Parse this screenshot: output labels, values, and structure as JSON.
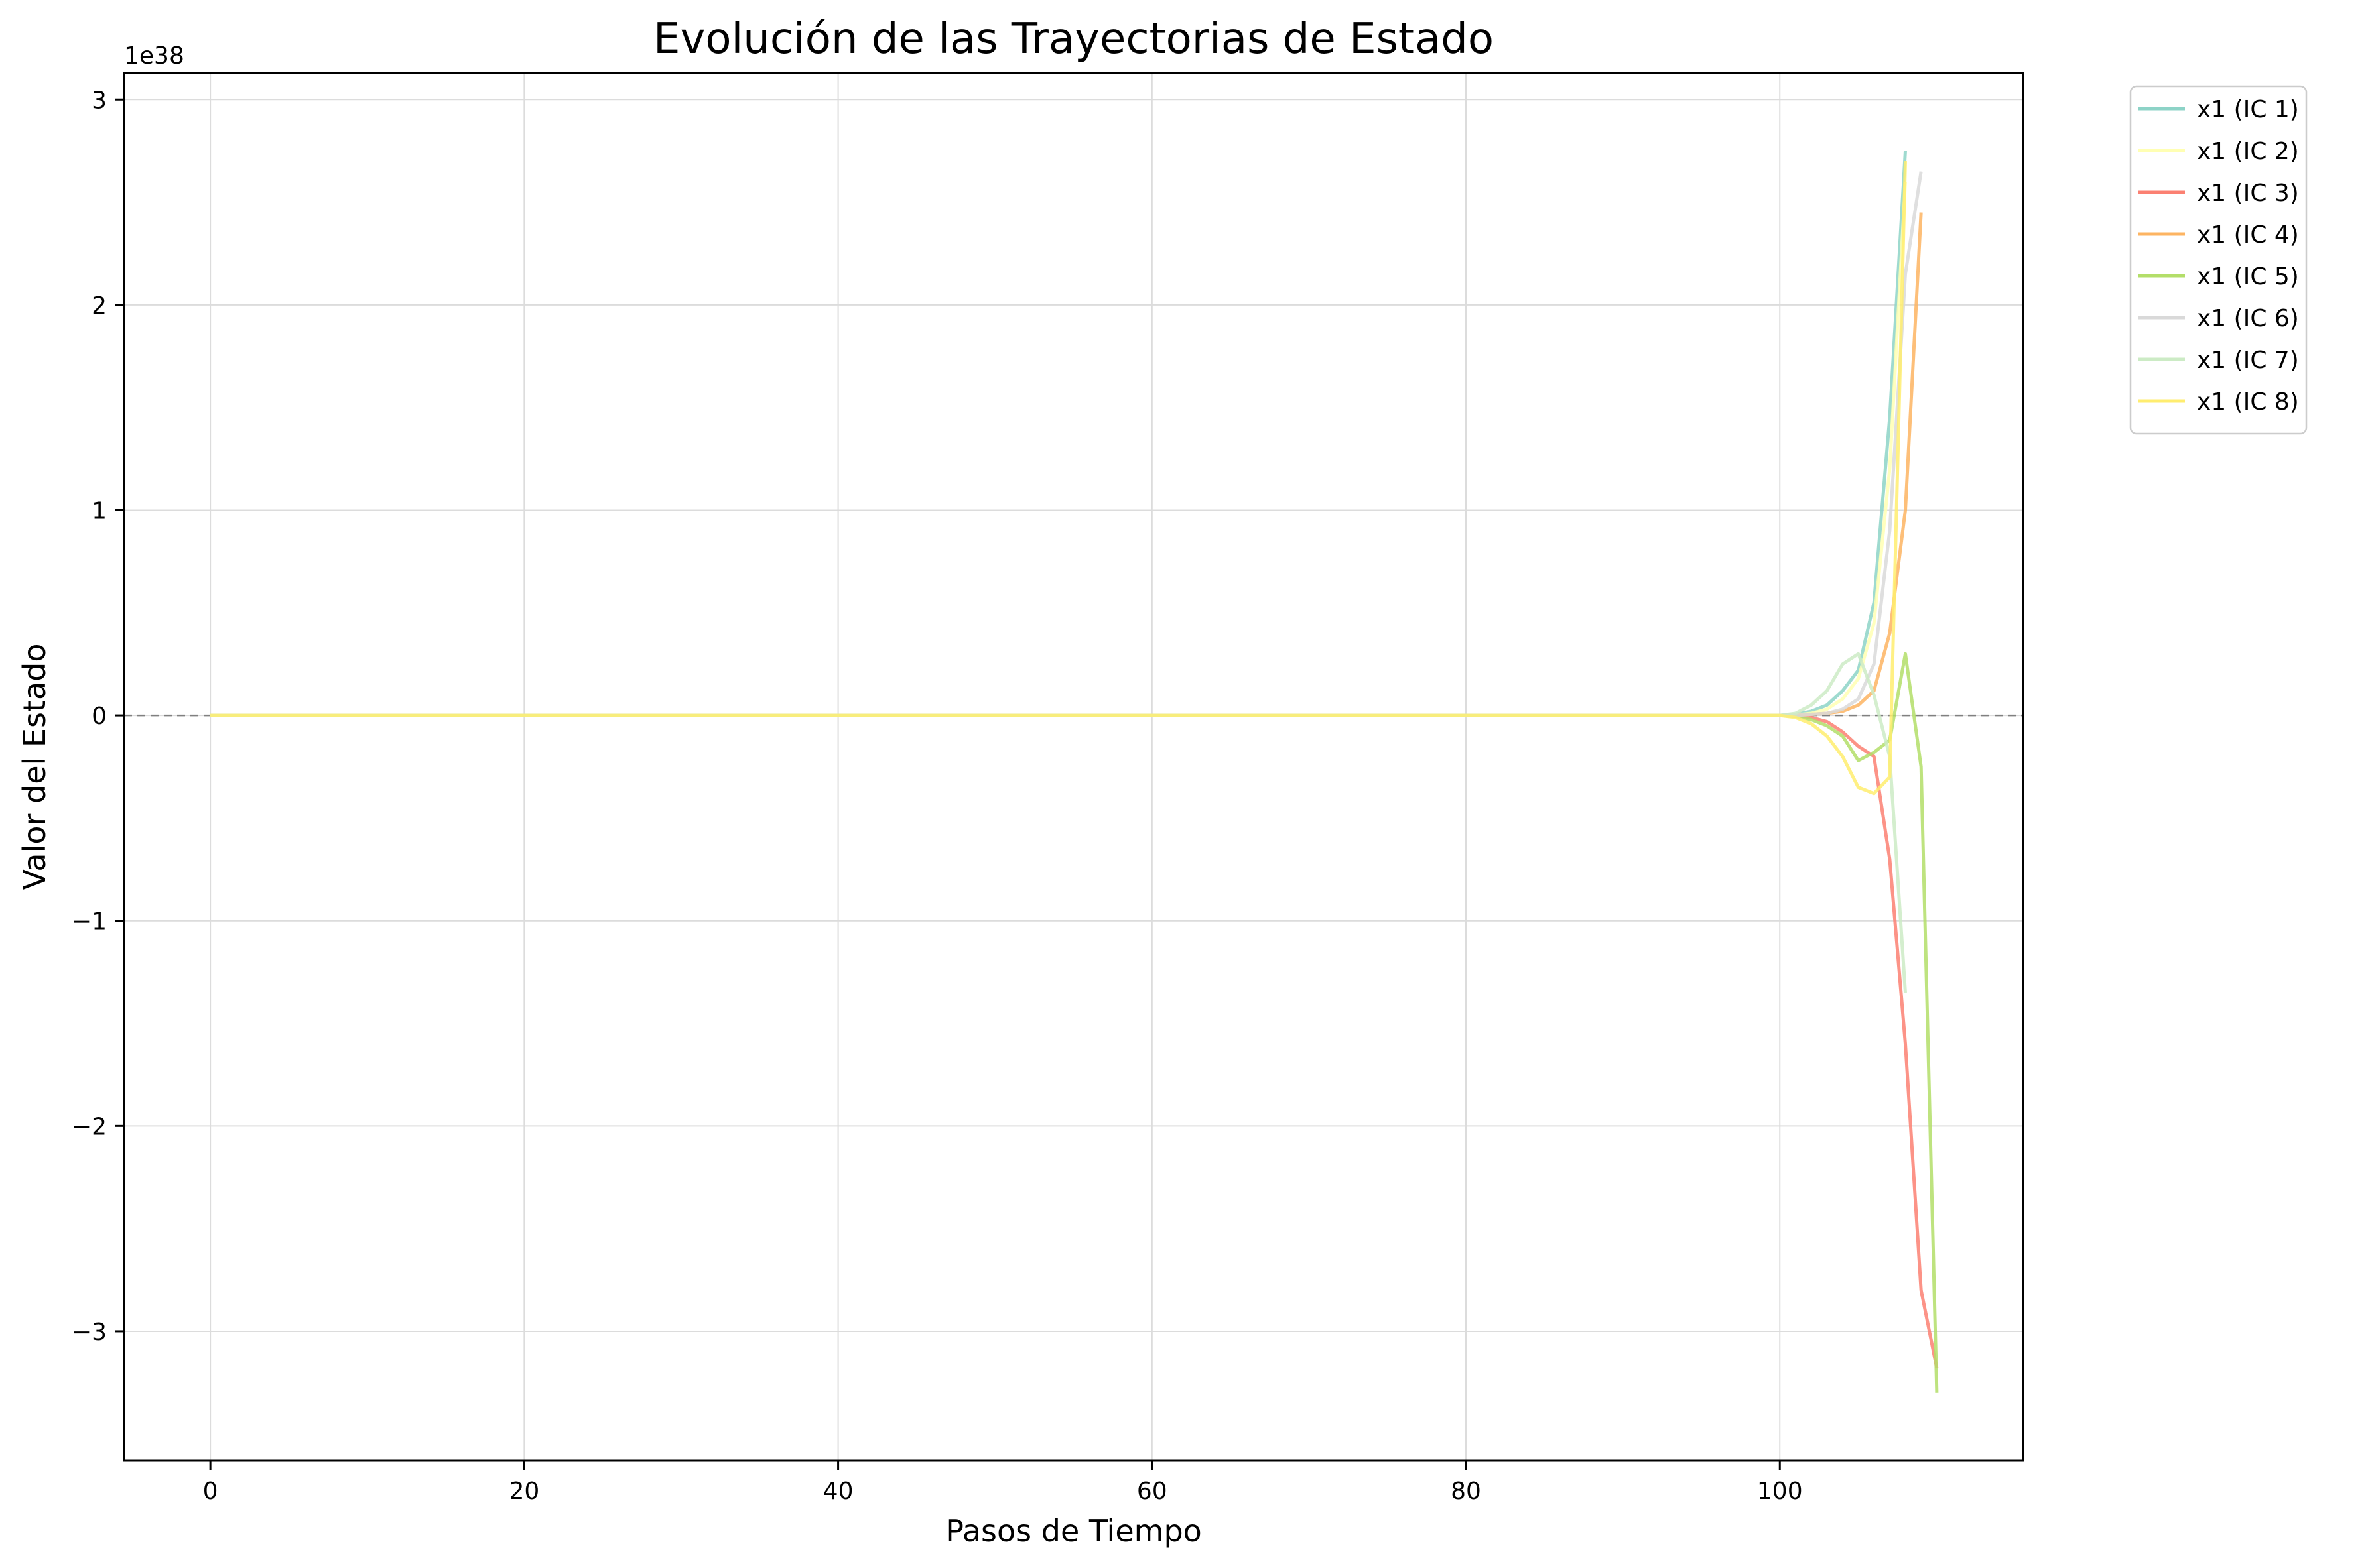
{
  "chart_data": {
    "type": "line",
    "title": "Evolución de las Trayectorias de Estado",
    "xlabel": "Pasos de Tiempo",
    "ylabel": "Valor del Estado",
    "y_multiplier_label": "1e38",
    "xlim": [
      -5.5,
      115.5
    ],
    "ylim": [
      -3.63,
      3.13
    ],
    "y_units": "1e38",
    "x_ticks": [
      0,
      20,
      40,
      60,
      80,
      100
    ],
    "x_tick_labels": [
      "0",
      "20",
      "40",
      "60",
      "80",
      "100"
    ],
    "y_ticks": [
      -3,
      -2,
      -1,
      0,
      1,
      2,
      3
    ],
    "y_tick_labels": [
      "−3",
      "−2",
      "−1",
      "0",
      "1",
      "2",
      "3"
    ],
    "grid": true,
    "zero_reference_line": true,
    "legend_position": "outside-top-right",
    "series": [
      {
        "name": "x1 (IC 1)",
        "color": "#8dd3c7",
        "x": [
          0,
          100,
          101,
          102,
          103,
          104,
          105,
          106,
          107,
          108
        ],
        "y": [
          0,
          0,
          0.005,
          0.02,
          0.05,
          0.12,
          0.22,
          0.55,
          1.45,
          2.75
        ]
      },
      {
        "name": "x1 (IC 2)",
        "color": "#ffffb3",
        "x": [
          0,
          100,
          101,
          102,
          103,
          104,
          105,
          106,
          107,
          108
        ],
        "y": [
          0,
          0,
          0.002,
          0.01,
          0.03,
          0.08,
          0.18,
          0.45,
          1.2,
          2.6
        ]
      },
      {
        "name": "x1 (IC 3)",
        "color": "#fb8072",
        "x": [
          0,
          100,
          101,
          102,
          103,
          104,
          105,
          106,
          107,
          108,
          109,
          110
        ],
        "y": [
          0,
          0,
          0,
          -0.01,
          -0.03,
          -0.08,
          -0.15,
          -0.2,
          -0.7,
          -1.6,
          -2.8,
          -3.18
        ]
      },
      {
        "name": "x1 (IC 4)",
        "color": "#fdb462",
        "x": [
          0,
          100,
          101,
          102,
          103,
          104,
          105,
          106,
          107,
          108,
          109
        ],
        "y": [
          0,
          0,
          0,
          0.005,
          0.01,
          0.02,
          0.05,
          0.12,
          0.4,
          1.0,
          2.45
        ]
      },
      {
        "name": "x1 (IC 5)",
        "color": "#b3de69",
        "x": [
          0,
          100,
          101,
          102,
          103,
          104,
          105,
          106,
          107,
          108,
          109,
          110
        ],
        "y": [
          0,
          0,
          -0.005,
          -0.02,
          -0.05,
          -0.1,
          -0.22,
          -0.18,
          -0.12,
          0.3,
          -0.25,
          -3.3
        ]
      },
      {
        "name": "x1 (IC 6)",
        "color": "#d9d9d9",
        "x": [
          0,
          100,
          101,
          102,
          103,
          104,
          105,
          106,
          107,
          108,
          109
        ],
        "y": [
          0,
          0,
          0,
          0.005,
          0.01,
          0.03,
          0.08,
          0.25,
          0.9,
          2.15,
          2.65
        ]
      },
      {
        "name": "x1 (IC 7)",
        "color": "#ccebc5",
        "x": [
          0,
          100,
          101,
          102,
          103,
          104,
          105,
          106,
          107,
          108
        ],
        "y": [
          0,
          0,
          0.01,
          0.05,
          0.12,
          0.25,
          0.3,
          0.1,
          -0.2,
          -1.35
        ]
      },
      {
        "name": "x1 (IC 8)",
        "color": "#ffed6f",
        "x": [
          0,
          100,
          101,
          102,
          103,
          104,
          105,
          106,
          107,
          108
        ],
        "y": [
          0,
          0,
          -0.01,
          -0.04,
          -0.1,
          -0.2,
          -0.35,
          -0.38,
          -0.3,
          2.7
        ]
      }
    ]
  }
}
